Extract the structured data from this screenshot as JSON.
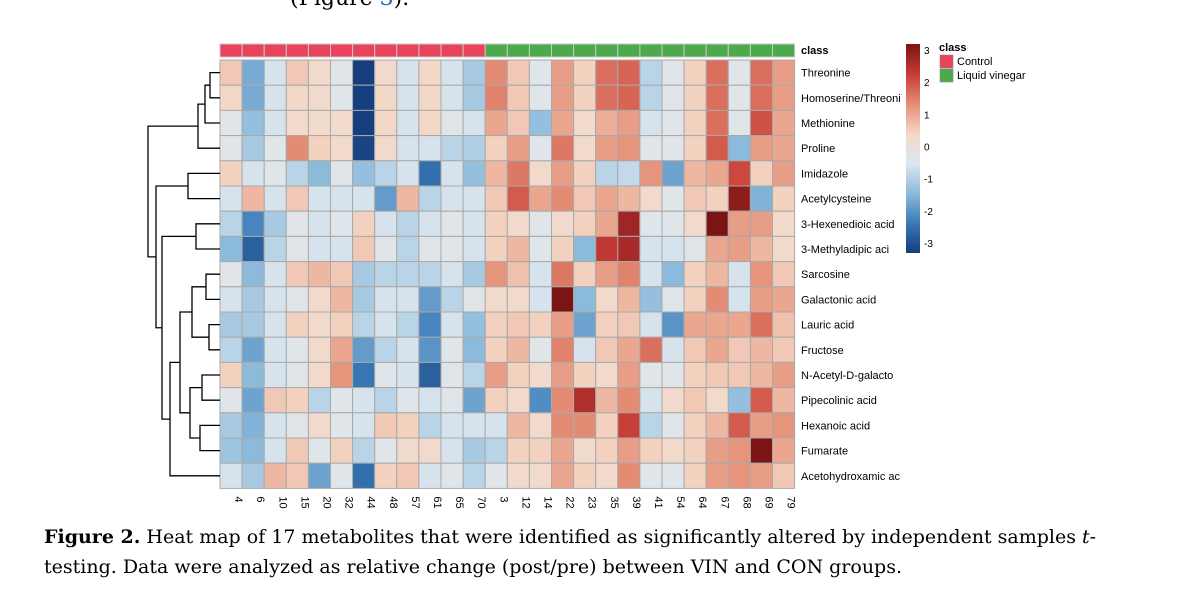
{
  "top_fragment": {
    "open": "(Figure ",
    "ref": "3",
    "close": ")."
  },
  "caption": {
    "label": "Figure 2.",
    "text_before": " Heat map of 17 metabolites that were identified as significantly altered by independent samples ",
    "italic": "t",
    "text_after": "-testing. Data were analyzed as relative change (post/pre) between VIN and CON groups."
  },
  "chart_data": {
    "type": "heatmap",
    "title": "",
    "columns": [
      "4",
      "6",
      "10",
      "15",
      "20",
      "32",
      "44",
      "48",
      "57",
      "61",
      "65",
      "70",
      "3",
      "12",
      "14",
      "22",
      "23",
      "35",
      "39",
      "41",
      "54",
      "64",
      "67",
      "68",
      "69",
      "79"
    ],
    "column_classes": [
      "Control",
      "Control",
      "Control",
      "Control",
      "Control",
      "Control",
      "Control",
      "Control",
      "Control",
      "Control",
      "Control",
      "Control",
      "Liquid vinegar",
      "Liquid vinegar",
      "Liquid vinegar",
      "Liquid vinegar",
      "Liquid vinegar",
      "Liquid vinegar",
      "Liquid vinegar",
      "Liquid vinegar",
      "Liquid vinegar",
      "Liquid vinegar",
      "Liquid vinegar",
      "Liquid vinegar",
      "Liquid vinegar",
      "Liquid vinegar"
    ],
    "class_annotation_label": "class",
    "class_colors": {
      "Control": "#e8435a",
      "Liquid vinegar": "#4caa4c"
    },
    "rows": [
      "Threonine",
      "Homoserine/Threoni",
      "Methionine",
      "Proline",
      "Imidazole",
      "Acetylcysteine",
      "3-Hexenedioic acid",
      "3-Methyladipic aci",
      "Sarcosine",
      "Galactonic acid",
      "Lauric acid",
      "Fructose",
      "N-Acetyl-D-galacto",
      "Pipecolinic acid",
      "Hexanoic acid",
      "Fumarate",
      "Acetohydroxamic ac"
    ],
    "values": [
      [
        0.6,
        -1.5,
        -0.5,
        0.6,
        0.3,
        -0.3,
        -3,
        0.3,
        -0.5,
        0.4,
        -0.5,
        -1,
        1.3,
        0.6,
        -0.3,
        1.1,
        0.5,
        1.6,
        1.7,
        -0.8,
        -0.3,
        0.5,
        1.6,
        -0.3,
        1.6,
        1.1
      ],
      [
        0.4,
        -1.5,
        -0.5,
        0.4,
        0.3,
        -0.3,
        -3,
        0.4,
        -0.5,
        0.4,
        -0.5,
        -1,
        1.4,
        0.6,
        -0.3,
        1.1,
        0.5,
        1.6,
        1.7,
        -0.8,
        -0.3,
        0.5,
        1.6,
        -0.3,
        1.6,
        1.1
      ],
      [
        -0.3,
        -1.2,
        -0.5,
        0.3,
        0.3,
        0.3,
        -3.3,
        0.4,
        -0.5,
        0.4,
        -0.3,
        -0.5,
        1,
        0.6,
        -1.2,
        1,
        0.3,
        0.9,
        1.1,
        -0.5,
        -0.3,
        0.5,
        1.6,
        -0.3,
        1.9,
        1
      ],
      [
        -0.3,
        -1,
        -0.3,
        1.3,
        0.5,
        0.3,
        -2.9,
        0.3,
        -0.5,
        -0.5,
        -0.8,
        -0.9,
        0.5,
        1.1,
        -0.3,
        1.5,
        0.3,
        1.1,
        1.2,
        -0.3,
        -0.3,
        0.5,
        1.8,
        -1.3,
        1.1,
        1
      ],
      [
        0.5,
        -0.5,
        -0.3,
        -0.8,
        -1.3,
        -0.3,
        -1.2,
        -0.8,
        -0.5,
        -2.3,
        -0.5,
        -1.2,
        0.8,
        1.5,
        0.3,
        1.1,
        0.5,
        -0.8,
        -0.7,
        1.2,
        -1.6,
        0.8,
        1,
        2,
        0.5,
        1.1
      ],
      [
        -0.5,
        0.8,
        -0.5,
        0.6,
        -0.5,
        -0.5,
        -0.5,
        -1.7,
        0.8,
        -0.8,
        -0.5,
        -0.5,
        0.6,
        1.8,
        1,
        1.3,
        0.6,
        1,
        0.8,
        0.3,
        -0.3,
        0.6,
        0.5,
        2.8,
        -1.4,
        0.5
      ],
      [
        -0.8,
        -2,
        -1,
        -0.3,
        -0.5,
        -0.3,
        0.5,
        -0.5,
        -0.8,
        -0.5,
        -0.3,
        -0.5,
        0.5,
        0.3,
        -0.3,
        0.3,
        0.5,
        1,
        2.6,
        -0.3,
        -0.3,
        0.3,
        3,
        1.1,
        1.1,
        0.3
      ],
      [
        -1.3,
        -2.5,
        -0.8,
        -0.3,
        -0.5,
        -0.5,
        0.6,
        -0.3,
        -0.8,
        -0.3,
        -0.3,
        -0.5,
        0.5,
        0.8,
        -0.3,
        0.5,
        -1.3,
        2.2,
        2.5,
        -0.5,
        -0.5,
        -0.3,
        1,
        1.1,
        0.8,
        0.3
      ],
      [
        -0.3,
        -1.3,
        -0.5,
        0.6,
        0.8,
        0.6,
        -1,
        -0.8,
        -0.8,
        -0.8,
        -0.5,
        -1,
        1.2,
        0.7,
        -0.5,
        1.5,
        0.5,
        1.1,
        1.4,
        -0.5,
        -1.3,
        0.5,
        0.8,
        -0.5,
        1.2,
        0.6
      ],
      [
        -0.5,
        -1,
        -0.5,
        -0.3,
        0.3,
        0.8,
        -1,
        -0.5,
        -0.5,
        -1.7,
        -0.8,
        -0.3,
        0.3,
        0.3,
        -0.5,
        3.1,
        -1.3,
        0.3,
        0.8,
        -1.2,
        -0.3,
        0.5,
        1.3,
        -0.5,
        1.1,
        1
      ],
      [
        -1,
        -1,
        -0.5,
        0.5,
        0.3,
        0.5,
        -0.8,
        -0.5,
        -0.8,
        -2,
        -0.5,
        -1.2,
        0.5,
        0.6,
        0.5,
        1.1,
        -1.6,
        0.5,
        0.6,
        -0.5,
        -1.8,
        1,
        1,
        1,
        1.6,
        0.7
      ],
      [
        -0.8,
        -1.6,
        -0.5,
        -0.3,
        0.3,
        1,
        -1.7,
        -0.8,
        -0.5,
        -1.8,
        -0.3,
        -1.3,
        0.5,
        0.8,
        -0.3,
        1.4,
        -0.5,
        0.6,
        1,
        1.6,
        -0.5,
        0.6,
        1,
        0.6,
        0.8,
        0.6
      ],
      [
        0.5,
        -1.3,
        -0.5,
        -0.3,
        0.3,
        1.2,
        -2.2,
        -0.3,
        -0.5,
        -2.5,
        -0.3,
        -0.8,
        1.1,
        0.5,
        0.3,
        1.1,
        0.5,
        0.3,
        1.1,
        -0.3,
        -0.3,
        0.5,
        0.6,
        0.6,
        0.8,
        1.1
      ],
      [
        -0.3,
        -1.6,
        0.6,
        0.5,
        -0.8,
        -0.3,
        -0.5,
        -0.8,
        -0.3,
        -0.5,
        -0.3,
        -1.6,
        0.5,
        0.3,
        -1.9,
        1.3,
        2.4,
        0.8,
        1.3,
        -0.5,
        0.3,
        0.6,
        0.3,
        -1.2,
        1.8,
        0.8
      ],
      [
        -1,
        -1.4,
        -0.5,
        -0.3,
        0.3,
        -0.3,
        -0.5,
        0.6,
        0.5,
        -0.8,
        -0.5,
        -0.5,
        -0.5,
        0.8,
        0.3,
        1.3,
        1.3,
        0.5,
        2.1,
        -0.8,
        -0.3,
        0.5,
        0.8,
        1.8,
        1.1,
        1.2
      ],
      [
        -1.1,
        -1.3,
        -0.5,
        0.6,
        -0.3,
        0.5,
        -0.8,
        -0.3,
        0.3,
        0.3,
        -0.5,
        -1,
        -0.8,
        0.5,
        0.5,
        1,
        0.3,
        0.5,
        1.1,
        0.5,
        0.3,
        0.5,
        1.1,
        1.2,
        3.1,
        1
      ],
      [
        -0.5,
        -1,
        0.8,
        0.6,
        -1.6,
        -0.3,
        -2.3,
        0.5,
        0.6,
        -0.5,
        -0.3,
        -0.8,
        -0.3,
        0.3,
        0.3,
        1,
        0.5,
        0.3,
        1.3,
        -0.3,
        -0.3,
        0.5,
        1.1,
        1.2,
        1.1,
        0.6
      ]
    ],
    "color_scale": {
      "min": -3,
      "max": 3,
      "colors": [
        "#163d7d",
        "#3a79b8",
        "#8cbbdc",
        "#dde7ef",
        "#f4d7c6",
        "#e58d74",
        "#c63a35",
        "#7c1416"
      ]
    },
    "colorbar_ticks": [
      3,
      2,
      1,
      0,
      -1,
      -2,
      -3
    ],
    "legend": {
      "title": "class",
      "entries": [
        "Control",
        "Liquid vinegar"
      ],
      "position": "top-right"
    },
    "row_dendrogram": true
  }
}
